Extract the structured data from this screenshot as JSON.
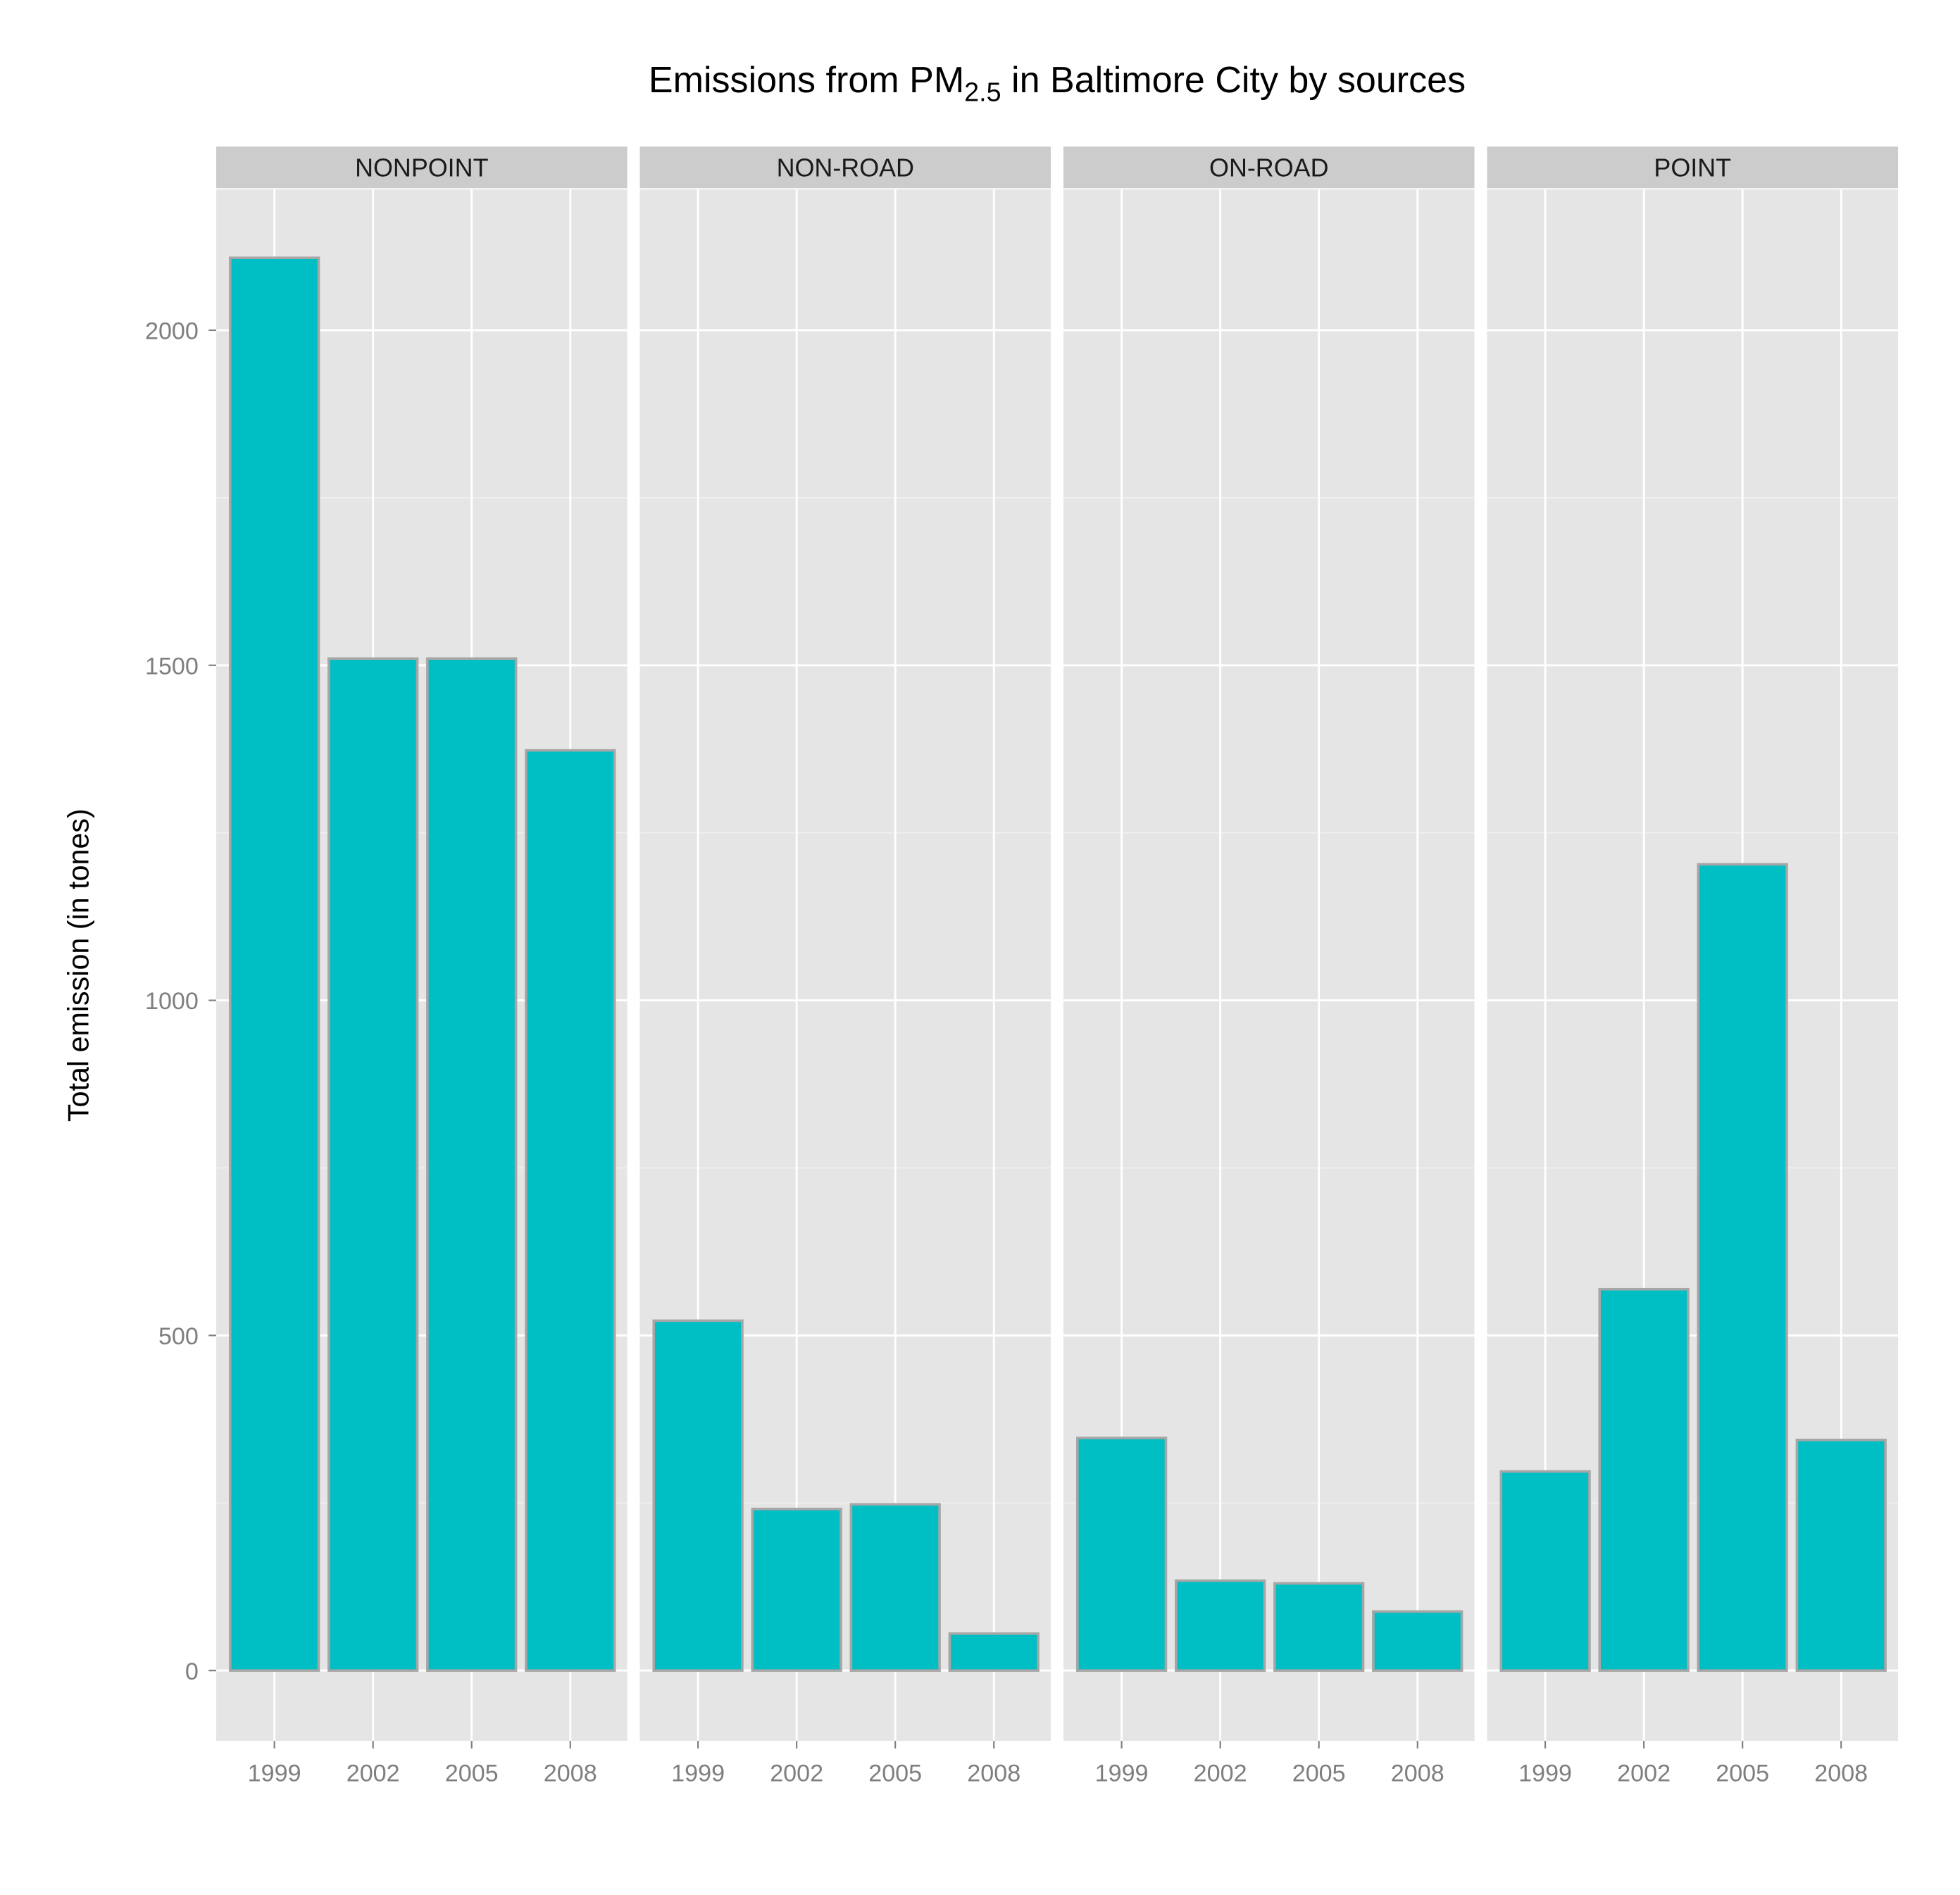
{
  "colors": {
    "bar_fill": "#00bfc4",
    "bar_border": "#a6a6a6",
    "panel_background": "#e5e5e5",
    "strip_background": "#cccccc",
    "grid": "#ffffff",
    "tick_text": "#7f7f7f"
  },
  "chart_data": {
    "type": "bar",
    "title": {
      "prefix": "Emissions from PM",
      "subscript": "2.5",
      "suffix": " in Baltimore City by sources"
    },
    "xlabel": "",
    "ylabel": "Total emission (in tones)",
    "ylim": [
      -105,
      2210
    ],
    "yticks": [
      0,
      500,
      1000,
      1500,
      2000
    ],
    "ytick_labels": [
      "0",
      "500",
      "1000",
      "1500",
      "2000"
    ],
    "categories": [
      "1999",
      "2002",
      "2005",
      "2008"
    ],
    "grid": true,
    "legend": "none",
    "facets": [
      {
        "name": "NONPOINT",
        "values": [
          2108,
          1510,
          1510,
          1373
        ]
      },
      {
        "name": "NON-ROAD",
        "values": [
          522,
          241,
          248,
          55
        ]
      },
      {
        "name": "ON-ROAD",
        "values": [
          347,
          134,
          130,
          88
        ]
      },
      {
        "name": "POINT",
        "values": [
          297,
          569,
          1203,
          344
        ]
      }
    ]
  }
}
